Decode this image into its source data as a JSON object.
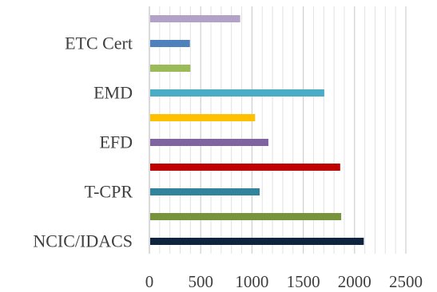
{
  "chart_data": {
    "type": "bar",
    "orientation": "horizontal",
    "title": "",
    "xlabel": "",
    "ylabel": "",
    "categories": [
      "NCIC/IDACS",
      "",
      "T-CPR",
      "",
      "EFD",
      "",
      "EMD",
      "",
      "ETC Cert",
      ""
    ],
    "values": [
      2090,
      1870,
      1075,
      1860,
      1160,
      1030,
      1705,
      400,
      395,
      885
    ],
    "bar_colors": [
      "#0f243e",
      "#77933c",
      "#31849b",
      "#c00000",
      "#8064a2",
      "#ffc000",
      "#4bacc6",
      "#9bbb59",
      "#4f81bd",
      "#b3a2c7"
    ],
    "x_ticks": [
      0,
      500,
      1000,
      1500,
      2000,
      2500
    ],
    "xlim": [
      0,
      2500
    ],
    "grid": "vertical, minor every 100",
    "legend": "none"
  }
}
